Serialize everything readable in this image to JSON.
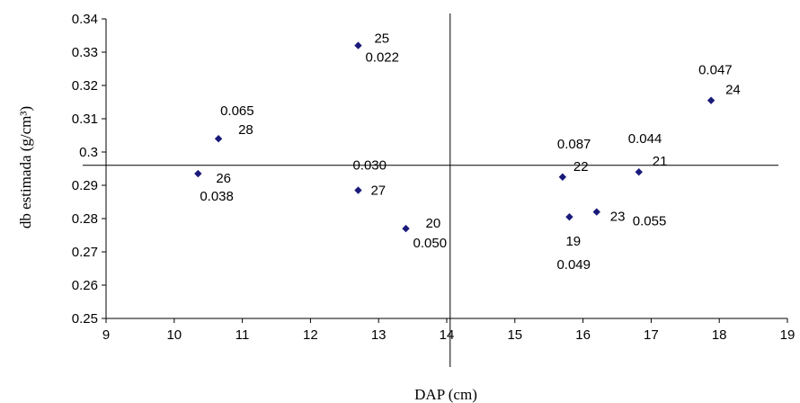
{
  "chart_data": {
    "type": "scatter",
    "xlabel": "DAP (cm)",
    "ylabel": "db estimada (g/cm³)",
    "xlim": [
      9,
      19
    ],
    "ylim": [
      0.25,
      0.34
    ],
    "x_ticks": [
      "9",
      "10",
      "11",
      "12",
      "13",
      "14",
      "15",
      "16",
      "17",
      "18",
      "19"
    ],
    "y_ticks": [
      "0.25",
      "0.26",
      "0.27",
      "0.28",
      "0.29",
      "0.3",
      "0.31",
      "0.32",
      "0.33",
      "0.34"
    ],
    "marker_color": "#1a1a7a",
    "reference_lines": {
      "x": 14.05,
      "y": 0.296
    },
    "points": [
      {
        "id": "25",
        "value": "0.022",
        "x": 12.7,
        "y": 0.332
      },
      {
        "id": "28",
        "value": "0.065",
        "x": 10.65,
        "y": 0.304
      },
      {
        "id": "26",
        "value": "0.038",
        "x": 10.35,
        "y": 0.2935
      },
      {
        "id": "27",
        "value": "0.030",
        "x": 12.7,
        "y": 0.2885
      },
      {
        "id": "20",
        "value": "0.050",
        "x": 13.4,
        "y": 0.277
      },
      {
        "id": "22",
        "value": "0.087",
        "x": 15.7,
        "y": 0.2925
      },
      {
        "id": "19",
        "value": "0.049",
        "x": 15.8,
        "y": 0.2805
      },
      {
        "id": "23",
        "value": "0.055",
        "x": 16.2,
        "y": 0.282
      },
      {
        "id": "21",
        "value": "0.044",
        "x": 16.82,
        "y": 0.294
      },
      {
        "id": "24",
        "value": "0.047",
        "x": 17.88,
        "y": 0.3155
      }
    ]
  }
}
